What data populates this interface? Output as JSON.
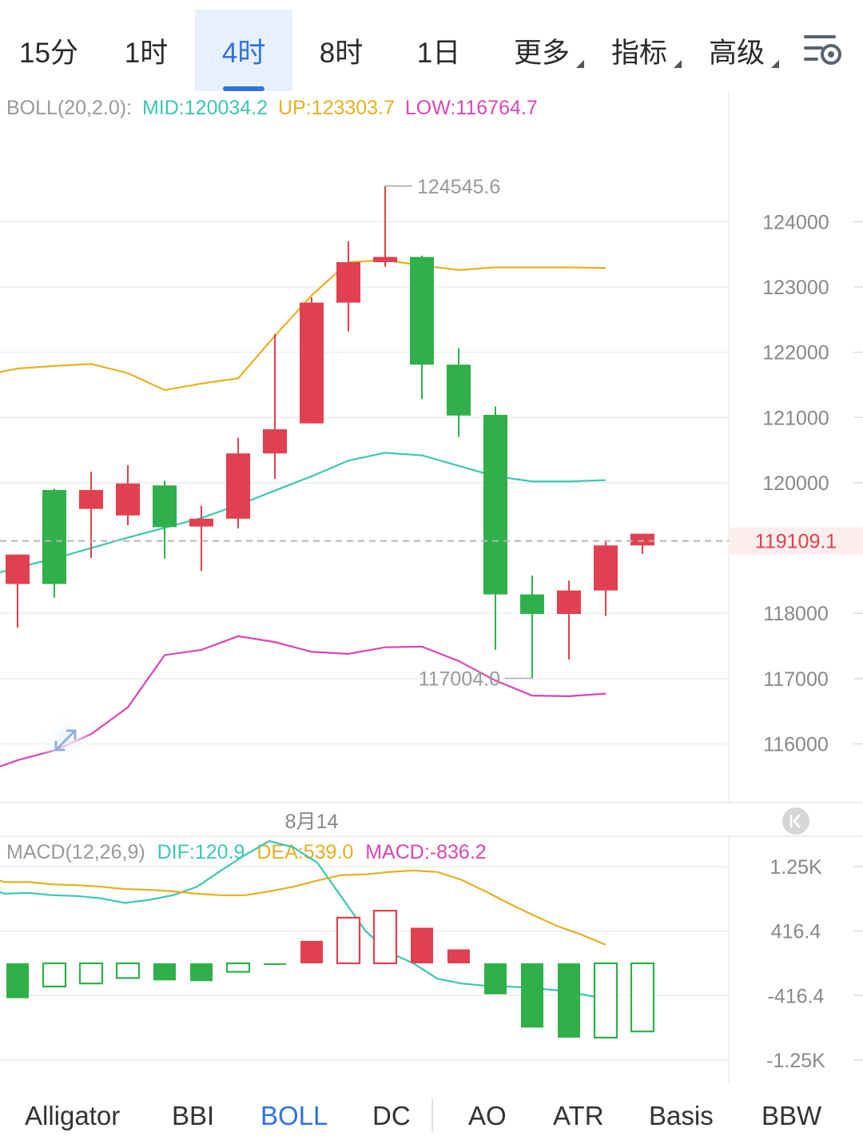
{
  "timeframes": [
    {
      "label": "15分",
      "active": false,
      "dropdown": false
    },
    {
      "label": "1时",
      "active": false,
      "dropdown": false
    },
    {
      "label": "4时",
      "active": true,
      "dropdown": false
    },
    {
      "label": "8时",
      "active": false,
      "dropdown": false
    },
    {
      "label": "1日",
      "active": false,
      "dropdown": false
    },
    {
      "label": "更多",
      "active": false,
      "dropdown": true
    },
    {
      "label": "指标",
      "active": false,
      "dropdown": true
    },
    {
      "label": "高级",
      "active": false,
      "dropdown": true
    }
  ],
  "settings_icon": "chart-settings-icon",
  "colors": {
    "up": "#e0404f",
    "down": "#2fb04a",
    "mid": "#3cc7b0",
    "upper": "#e5b021",
    "lower": "#d647b4",
    "active": "#2f73e0",
    "grid": "#eeeeee",
    "text": "#888888"
  },
  "boll_legend": {
    "name": "BOLL(20,2.0):",
    "mid": "MID:120034.2",
    "up": "UP:123303.7",
    "low": "LOW:116764.7"
  },
  "macd_legend": {
    "name": "MACD(12,26,9)",
    "dif": "DIF:120.9",
    "dea": "DEA:539.0",
    "macd": "MACD:-836.2"
  },
  "expand_icon": "expand-arrows-icon",
  "scroll_latest_icon": "scroll-to-latest-icon",
  "chart_data": [
    {
      "type": "candlestick",
      "indicator": "BOLL(20,2.0)",
      "y_ticks": [
        124000,
        123000,
        122000,
        121000,
        120000,
        118000,
        117000,
        116000
      ],
      "y_tick_labels": [
        "124000",
        "123000",
        "122000",
        "121000",
        "120000",
        "118000",
        "117000",
        "116000"
      ],
      "ylim": [
        115100,
        126000
      ],
      "current_price": 119109.1,
      "current_price_label": "119109.1",
      "high_marker": {
        "label": "124545.6",
        "value": 124545.6,
        "index": 10
      },
      "low_marker": {
        "label": "117004.0",
        "value": 117004.0,
        "index": 14
      },
      "x_label": "8月14",
      "x_label_index": 8,
      "candles": [
        {
          "o": 118450,
          "h": 118900,
          "l": 117780,
          "c": 118900
        },
        {
          "o": 119890,
          "h": 119910,
          "l": 118240,
          "c": 118450
        },
        {
          "o": 119600,
          "h": 120170,
          "l": 118850,
          "c": 119890
        },
        {
          "o": 119500,
          "h": 120270,
          "l": 119350,
          "c": 119990
        },
        {
          "o": 119960,
          "h": 120030,
          "l": 118840,
          "c": 119320
        },
        {
          "o": 119330,
          "h": 119650,
          "l": 118650,
          "c": 119450
        },
        {
          "o": 119450,
          "h": 120690,
          "l": 119300,
          "c": 120450
        },
        {
          "o": 120450,
          "h": 122280,
          "l": 120060,
          "c": 120820
        },
        {
          "o": 120910,
          "h": 122840,
          "l": 120910,
          "c": 122760
        },
        {
          "o": 122760,
          "h": 123700,
          "l": 122320,
          "c": 123380
        },
        {
          "o": 123380,
          "h": 124545.6,
          "l": 123310,
          "c": 123460
        },
        {
          "o": 123460,
          "h": 123480,
          "l": 121280,
          "c": 121810
        },
        {
          "o": 121810,
          "h": 122060,
          "l": 120700,
          "c": 121030
        },
        {
          "o": 121040,
          "h": 121170,
          "l": 117440,
          "c": 118290
        },
        {
          "o": 118290,
          "h": 118580,
          "l": 117004.0,
          "c": 117990
        },
        {
          "o": 117990,
          "h": 118500,
          "l": 117290,
          "c": 118350
        },
        {
          "o": 118350,
          "h": 119100,
          "l": 117960,
          "c": 119040
        },
        {
          "o": 119040,
          "h": 119200,
          "l": 118910,
          "c": 119220
        }
      ],
      "series": [
        {
          "name": "MID",
          "values": [
            118550,
            118700,
            118840,
            119000,
            119160,
            119310,
            119460,
            119660,
            119880,
            120100,
            120340,
            120460,
            120420,
            120260,
            120100,
            120020,
            120020,
            120040
          ]
        },
        {
          "name": "UP",
          "values": [
            121640,
            121750,
            121790,
            121820,
            121680,
            121420,
            121520,
            121600,
            122250,
            122870,
            123380,
            123410,
            123330,
            123260,
            123300,
            123300,
            123300,
            123290
          ]
        },
        {
          "name": "LOW",
          "values": [
            115550,
            115750,
            115900,
            116150,
            116560,
            117360,
            117440,
            117650,
            117560,
            117410,
            117380,
            117480,
            117490,
            117270,
            116970,
            116740,
            116730,
            116770
          ]
        }
      ],
      "x_start": -1
    },
    {
      "type": "bar",
      "indicator": "MACD(12,26,9)",
      "y_ticks": [
        1250,
        416.4,
        -416.4,
        -1250
      ],
      "y_tick_labels": [
        "1.25K",
        "416.4",
        "-416.4",
        "-1.25K"
      ],
      "ylim": [
        -1560,
        1560
      ],
      "histogram": [
        -450,
        -300,
        -260,
        -190,
        -220,
        -230,
        -110,
        -10,
        290,
        590,
        680,
        460,
        180,
        -400,
        -830,
        -960,
        -960,
        -880
      ],
      "hollow": [
        false,
        true,
        true,
        true,
        false,
        false,
        true,
        false,
        false,
        true,
        true,
        false,
        false,
        false,
        false,
        false,
        true,
        true
      ],
      "series": [
        {
          "name": "DIF",
          "values": [
            1000,
            900,
            910,
            880,
            870,
            840,
            780,
            820,
            880,
            990,
            1200,
            1400,
            1580,
            1500,
            1300,
            860,
            420,
            140,
            0,
            -200,
            -260,
            -290,
            -300,
            -320,
            -350,
            -400,
            -460
          ]
        },
        {
          "name": "DEA",
          "values": [
            1150,
            1050,
            1050,
            1020,
            1010,
            990,
            960,
            950,
            930,
            900,
            880,
            880,
            930,
            990,
            1070,
            1140,
            1150,
            1180,
            1200,
            1180,
            1080,
            930,
            770,
            620,
            480,
            370,
            240
          ]
        }
      ],
      "series_x_step": 46,
      "x_start": -1
    }
  ],
  "indicators": [
    {
      "label": "Alligator",
      "active": false
    },
    {
      "label": "BBI",
      "active": false
    },
    {
      "label": "BOLL",
      "active": true
    },
    {
      "label": "DC",
      "active": false
    },
    {
      "label": "AO",
      "active": false
    },
    {
      "label": "ATR",
      "active": false
    },
    {
      "label": "Basis",
      "active": false
    },
    {
      "label": "BBW",
      "active": false
    }
  ]
}
